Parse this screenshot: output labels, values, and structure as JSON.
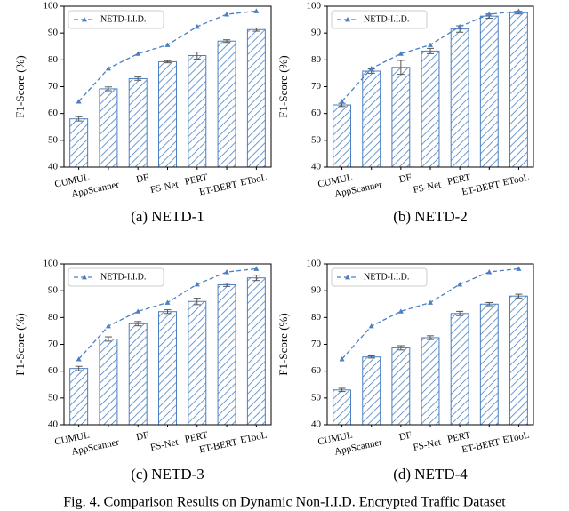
{
  "chart_data": [
    {
      "type": "bar",
      "caption": "(a) NETD-1",
      "ylabel": "F1-Score (%)",
      "categories": [
        "CUMUL",
        "AppScanner",
        "DF",
        "FS-Net",
        "PERT",
        "ET-BERT",
        "ETooL"
      ],
      "values": [
        58,
        69.2,
        73,
        79.3,
        81.6,
        87,
        91.3
      ],
      "errors": [
        0.8,
        0.7,
        0.6,
        0.4,
        1.3,
        0.5,
        0.6
      ],
      "color": "#4a7fc1",
      "line": {
        "name": "NETD-I.I.D.",
        "values": [
          64.5,
          76.8,
          82.3,
          85.6,
          92.4,
          97.0,
          98.2
        ],
        "color": "#4a7fc1"
      },
      "ylim": [
        40,
        100
      ],
      "yticks": [
        40,
        50,
        60,
        70,
        80,
        90,
        100
      ],
      "legend": "upper left"
    },
    {
      "type": "bar",
      "caption": "(b) NETD-2",
      "ylabel": "F1-Score (%)",
      "categories": [
        "CUMUL",
        "AppScanner",
        "DF",
        "FS-Net",
        "PERT",
        "ET-BERT",
        "ETooL"
      ],
      "values": [
        63.2,
        75.8,
        77.2,
        83.3,
        91.5,
        96.3,
        97.6
      ],
      "errors": [
        0.6,
        0.8,
        2.6,
        1.0,
        1.2,
        0.8,
        0.5
      ],
      "color": "#4a7fc1",
      "line": {
        "name": "NETD-I.I.D.",
        "values": [
          64.5,
          76.8,
          82.3,
          85.6,
          92.4,
          97.0,
          98.2
        ],
        "color": "#4a7fc1"
      },
      "ylim": [
        40,
        100
      ],
      "yticks": [
        40,
        50,
        60,
        70,
        80,
        90,
        100
      ],
      "legend": "upper left"
    },
    {
      "type": "bar",
      "caption": "(c) NETD-3",
      "ylabel": "F1-Score (%)",
      "categories": [
        "CUMUL",
        "AppScanner",
        "DF",
        "FS-Net",
        "PERT",
        "ET-BERT",
        "ETooL"
      ],
      "values": [
        61,
        72,
        77.7,
        82.2,
        86,
        92.2,
        94.8
      ],
      "errors": [
        0.8,
        0.8,
        0.8,
        0.7,
        1.2,
        0.6,
        1.0
      ],
      "color": "#4a7fc1",
      "line": {
        "name": "NETD-I.I.D.",
        "values": [
          64.5,
          76.8,
          82.3,
          85.6,
          92.4,
          97.0,
          98.2
        ],
        "color": "#4a7fc1"
      },
      "ylim": [
        40,
        100
      ],
      "yticks": [
        40,
        50,
        60,
        70,
        80,
        90,
        100
      ],
      "legend": "upper left"
    },
    {
      "type": "bar",
      "caption": "(d) NETD-4",
      "ylabel": "F1-Score (%)",
      "categories": [
        "CUMUL",
        "AppScanner",
        "DF",
        "FS-Net",
        "PERT",
        "ET-BERT",
        "ETooL"
      ],
      "values": [
        53,
        65.3,
        68.7,
        72.5,
        81.5,
        85,
        88
      ],
      "errors": [
        0.6,
        0.4,
        0.8,
        0.7,
        0.8,
        0.6,
        0.7
      ],
      "color": "#4a7fc1",
      "line": {
        "name": "NETD-I.I.D.",
        "values": [
          64.5,
          76.8,
          82.3,
          85.6,
          92.4,
          97.0,
          98.2
        ],
        "color": "#4a7fc1"
      },
      "ylim": [
        40,
        100
      ],
      "yticks": [
        40,
        50,
        60,
        70,
        80,
        90,
        100
      ],
      "legend": "upper left"
    }
  ],
  "caption": "Fig. 4. Comparison Results on Dynamic Non-I.I.D. Encrypted Traffic Dataset"
}
